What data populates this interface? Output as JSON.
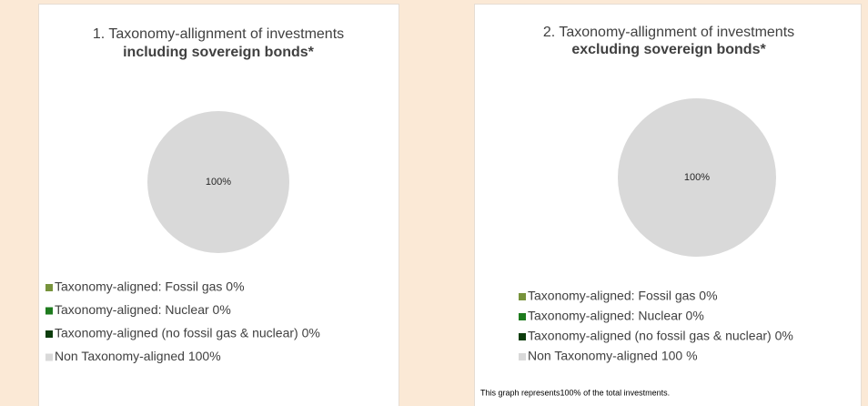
{
  "chart_data": [
    {
      "type": "pie",
      "title": "1. Taxonomy-allignment of investments",
      "subtitle": "including sovereign bonds*",
      "categories": [
        "Taxonomy-aligned: Fossil gas 0%",
        "Taxonomy-aligned: Nuclear 0%",
        "Taxonomy-aligned (no fossil gas & nuclear) 0%",
        "Non Taxonomy-aligned 100%"
      ],
      "values": [
        0,
        0,
        0,
        100
      ],
      "value_labels": [
        null,
        null,
        null,
        "100%"
      ],
      "colors": [
        "#77933c",
        "#1e7b1e",
        "#0d3d0d",
        "#d9d9d9"
      ],
      "legend": "bottom-left"
    },
    {
      "type": "pie",
      "title": "2. Taxonomy-allignment of investments",
      "subtitle": "excluding sovereign bonds*",
      "categories": [
        "Taxonomy-aligned: Fossil gas 0%",
        "Taxonomy-aligned: Nuclear 0%",
        "Taxonomy-aligned (no fossil gas & nuclear) 0%",
        "Non Taxonomy-aligned 100 %"
      ],
      "values": [
        0,
        0,
        0,
        100
      ],
      "value_labels": [
        null,
        null,
        null,
        "100%"
      ],
      "colors": [
        "#77933c",
        "#1e7b1e",
        "#0d3d0d",
        "#d9d9d9"
      ],
      "legend": "bottom-left",
      "note": "This graph represents100% of the total investments."
    }
  ]
}
